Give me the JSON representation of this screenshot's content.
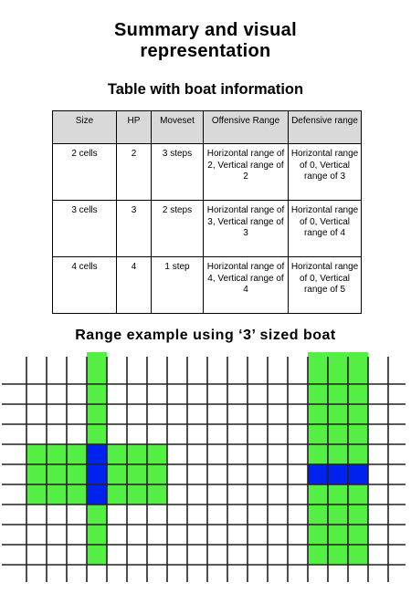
{
  "title_line1": "Summary and visual",
  "title_line2": "representation",
  "table_heading": "Table with boat information",
  "table": {
    "headers": [
      "Size",
      "HP",
      "Moveset",
      "Offensive Range",
      "Defensive range"
    ],
    "rows": [
      [
        "2 cells",
        "2",
        "3 steps",
        "Horizontal range of 2, Vertical range of 2",
        "Horizontal range of 0, Vertical range of 3"
      ],
      [
        "3 cells",
        "3",
        "2 steps",
        "Horizontal range of 3, Vertical range of 3",
        "Horizontal range of 0, Vertical range of 4"
      ],
      [
        "4 cells",
        "4",
        "1 step",
        "Horizontal range of 4, Vertical range of 4",
        "Horizontal range of 0, Vertical range of 5"
      ]
    ]
  },
  "range_heading": "Range example using ‘3’ sized boat",
  "colors": {
    "range": "#55ee44",
    "boat": "#0022ee",
    "grid_line": "#222222",
    "header_bg": "#d9d9d9"
  },
  "diagram": {
    "cols": 20,
    "rows": 10,
    "offensive_example": {
      "boat_cells": [
        [
          4,
          4
        ],
        [
          4,
          5
        ],
        [
          4,
          6
        ]
      ],
      "range_cells": "cross, 3 cells in each direction"
    },
    "defensive_example": {
      "boat_cells": [
        [
          15,
          5
        ],
        [
          16,
          5
        ],
        [
          17,
          5
        ]
      ],
      "range_cells": "columns 15-17, rows 1-10"
    }
  }
}
